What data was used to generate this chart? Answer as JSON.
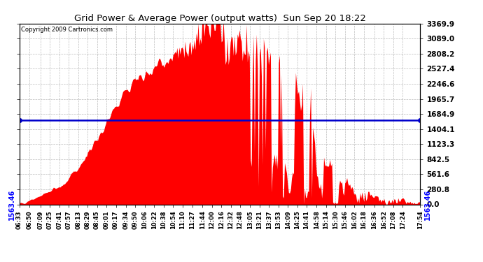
{
  "title": "Grid Power & Average Power (output watts)  Sun Sep 20 18:22",
  "copyright": "Copyright 2009 Cartronics.com",
  "avg_line_value": 1563.46,
  "ymax": 3369.9,
  "yticks": [
    0.0,
    280.8,
    561.6,
    842.5,
    1123.3,
    1404.1,
    1684.9,
    1965.7,
    2246.6,
    2527.4,
    2808.2,
    3089.0,
    3369.9
  ],
  "fill_color": "#FF0000",
  "line_color": "#0000CC",
  "background_color": "#FFFFFF",
  "grid_color": "#AAAAAA",
  "x_labels": [
    "06:33",
    "06:50",
    "07:09",
    "07:25",
    "07:41",
    "07:57",
    "08:13",
    "08:29",
    "08:45",
    "09:01",
    "09:17",
    "09:34",
    "09:50",
    "10:06",
    "10:22",
    "10:38",
    "10:54",
    "11:10",
    "11:27",
    "11:44",
    "12:00",
    "12:16",
    "12:32",
    "12:48",
    "13:05",
    "13:21",
    "13:37",
    "13:53",
    "14:09",
    "14:25",
    "14:41",
    "14:58",
    "15:14",
    "15:30",
    "15:46",
    "16:02",
    "16:18",
    "16:36",
    "16:52",
    "17:08",
    "17:24",
    "17:54"
  ],
  "avg_label": "1563.46"
}
